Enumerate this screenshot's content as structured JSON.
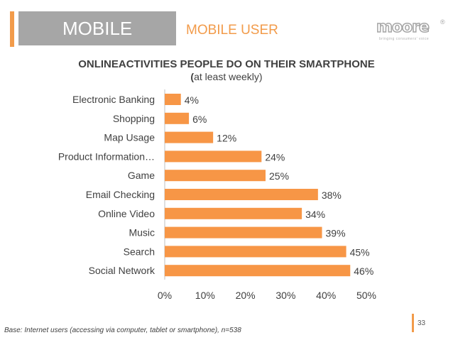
{
  "header": {
    "section": "MOBILE",
    "subtitle": "MOBILE USER"
  },
  "logo": {
    "word": "moore",
    "reg": "®",
    "tagline": "bringing consumers' voice"
  },
  "chart_data": {
    "type": "bar",
    "orientation": "horizontal",
    "title": "ONLINEACTIVITIES PEOPLE DO ON THEIR SMARTPHONE",
    "subtitle_bold": "(",
    "subtitle_rest": "at least weekly)",
    "categories": [
      "Electronic Banking",
      "Shopping",
      "Map Usage",
      "Product Information…",
      "Game",
      "Email Checking",
      "Online Video",
      "Music",
      "Search",
      "Social Network"
    ],
    "values": [
      4,
      6,
      12,
      24,
      25,
      38,
      34,
      39,
      45,
      46
    ],
    "value_labels": [
      "4%",
      "6%",
      "12%",
      "24%",
      "25%",
      "38%",
      "34%",
      "39%",
      "45%",
      "46%"
    ],
    "xlim": [
      0,
      50
    ],
    "ticks": [
      0,
      10,
      20,
      30,
      40,
      50
    ],
    "tick_labels": [
      "0%",
      "10%",
      "20%",
      "30%",
      "40%",
      "50%"
    ],
    "bar_color": "#F79646",
    "grid": false
  },
  "footer": {
    "base_note": "Base: Internet users (accessing via computer, tablet or smartphone), n=538",
    "page_number": "33"
  }
}
